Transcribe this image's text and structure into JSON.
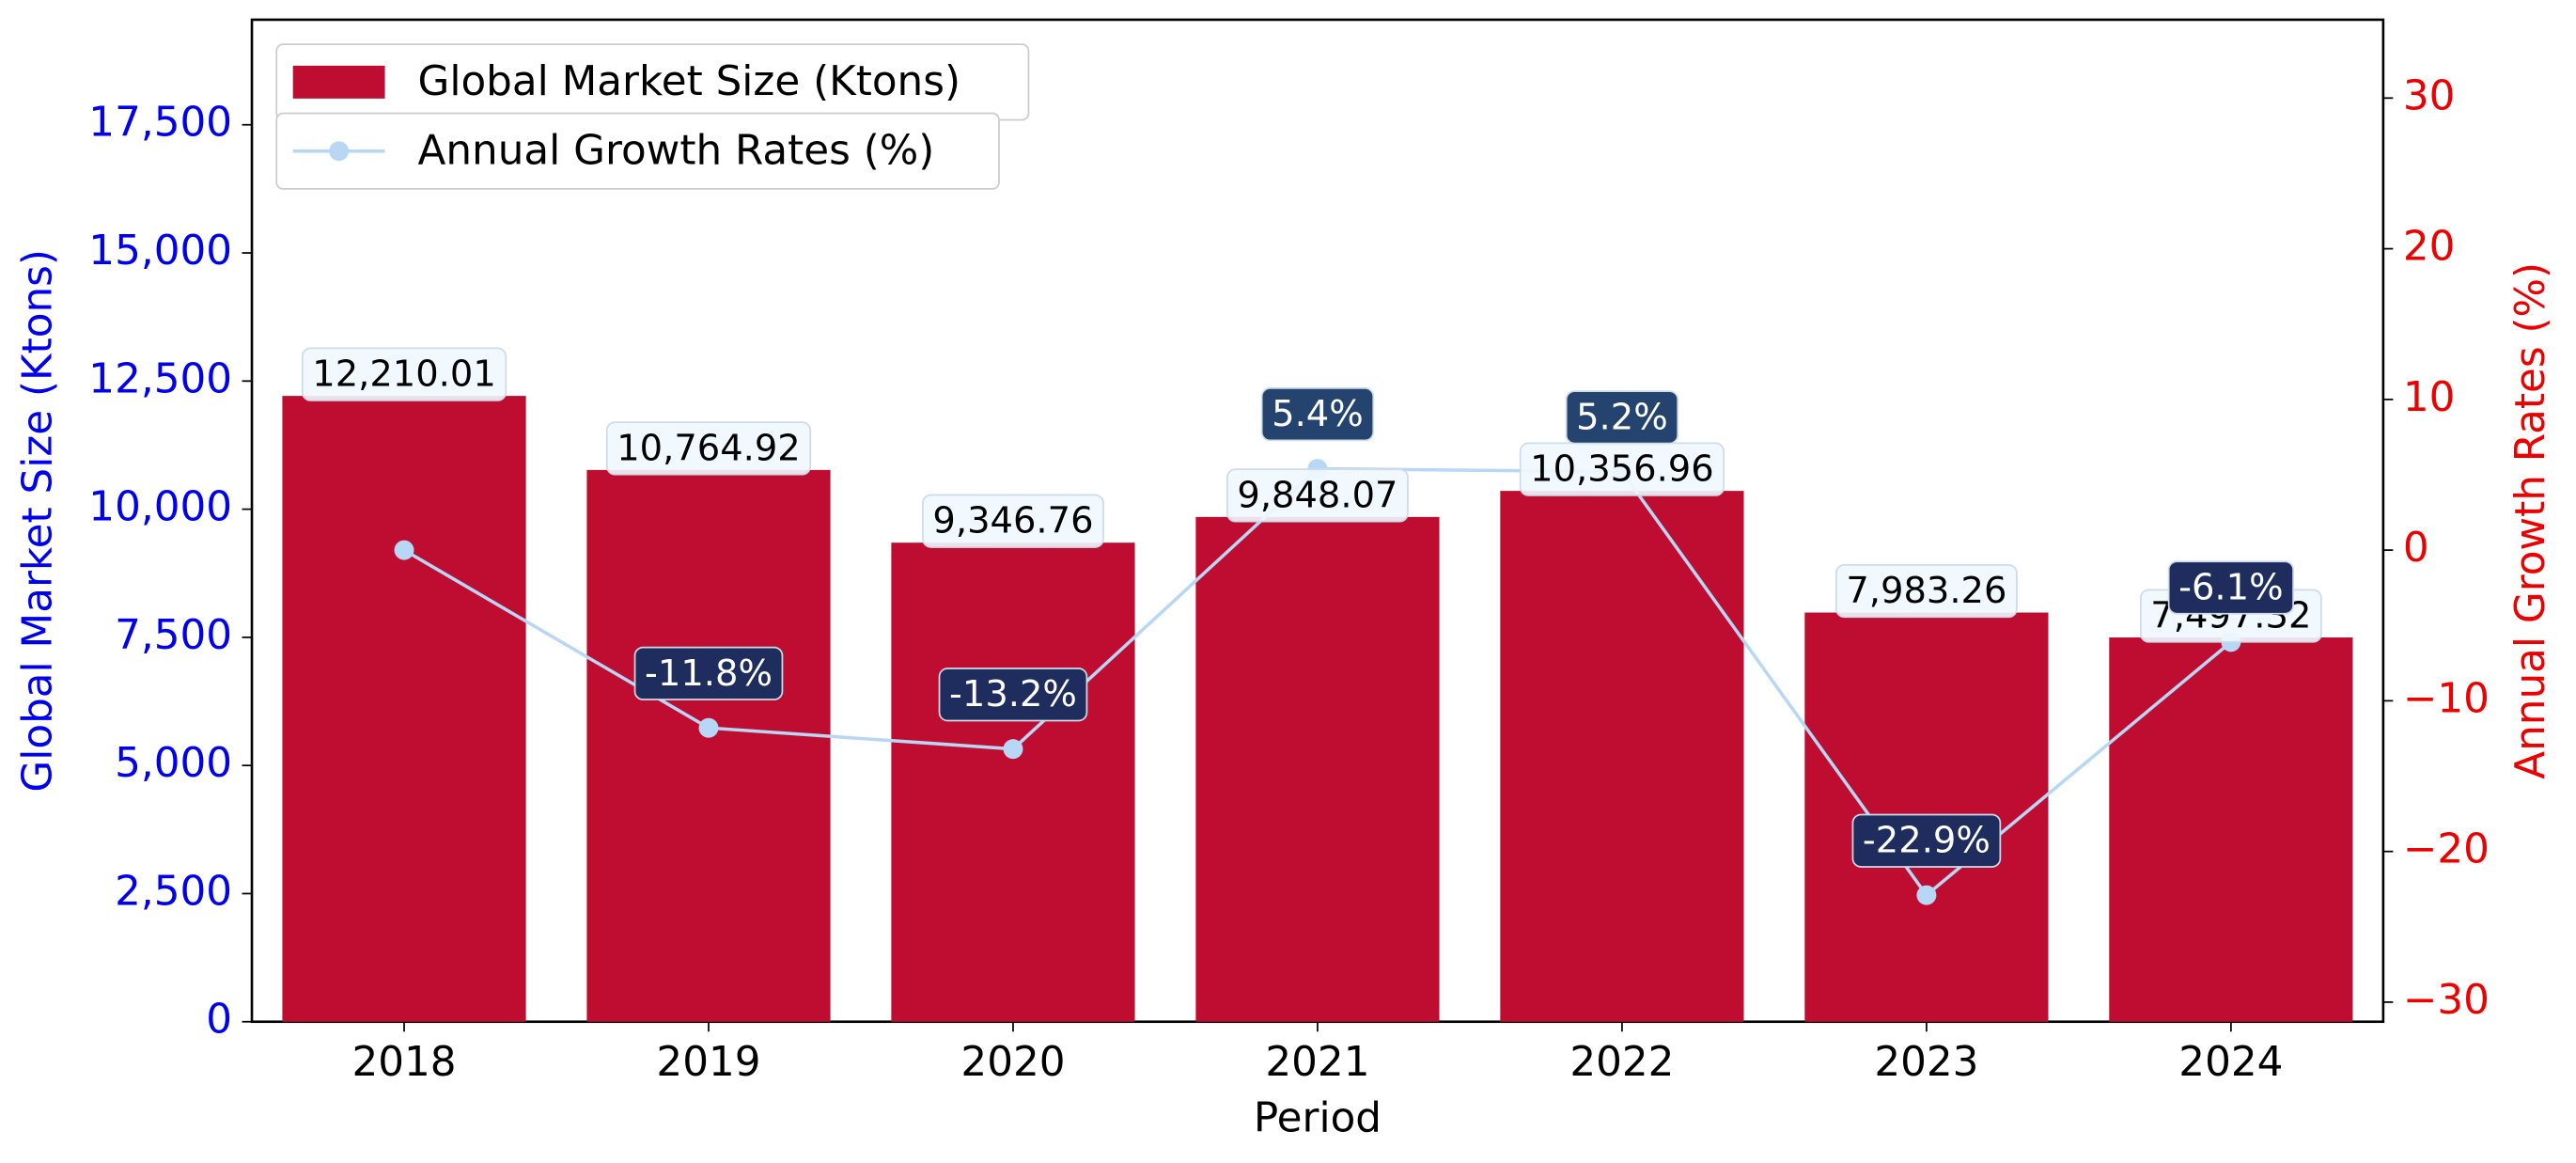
{
  "chart_data": {
    "type": "bar_line",
    "categories": [
      "2018",
      "2019",
      "2020",
      "2021",
      "2022",
      "2023",
      "2024"
    ],
    "xlabel": "Period",
    "ylabel": "Global Market Size (Ktons)",
    "y2label": "Annual Growth Rates (%)",
    "series": [
      {
        "name": "Global Market Size (Ktons)",
        "type": "bar",
        "color": "#bf0d32",
        "values": [
          12210.01,
          10764.92,
          9346.76,
          9848.07,
          10356.96,
          7983.26,
          7497.32
        ],
        "value_labels": [
          "12,210.01",
          "10,764.92",
          "9,346.76",
          "9,848.07",
          "10,356.96",
          "7,983.26",
          "7,497.32"
        ]
      },
      {
        "name": "Annual Growth Rates (%)",
        "type": "line",
        "axis": "y2",
        "color": "#b7d7f5",
        "values": [
          0,
          -11.8,
          -13.2,
          5.4,
          5.2,
          -22.9,
          -6.1
        ],
        "value_labels": [
          null,
          "-11.8%",
          "-13.2%",
          "5.4%",
          "5.2%",
          "-22.9%",
          "-6.1%"
        ]
      }
    ],
    "ylim": [
      0,
      19550
    ],
    "yticks": [
      0,
      {
        "value": 2500,
        "label": "2,500"
      },
      {
        "value": 5000,
        "label": "5,000"
      },
      {
        "value": 7500,
        "label": "7,500"
      },
      {
        "value": 10000,
        "label": "10,000"
      },
      {
        "value": 12500,
        "label": "12,500"
      },
      {
        "value": 15000,
        "label": "15,000"
      },
      {
        "value": 17500,
        "label": "17,500"
      }
    ],
    "y2lim": [
      -31.3,
      35.2
    ],
    "y2ticks": [
      {
        "value": -30,
        "label": "−30"
      },
      {
        "value": -20,
        "label": "−20"
      },
      {
        "value": -10,
        "label": "−10"
      },
      0,
      10,
      20,
      30
    ],
    "ycolor": "#0000ee",
    "y2color": "#ee0000",
    "legend": "upper left"
  }
}
